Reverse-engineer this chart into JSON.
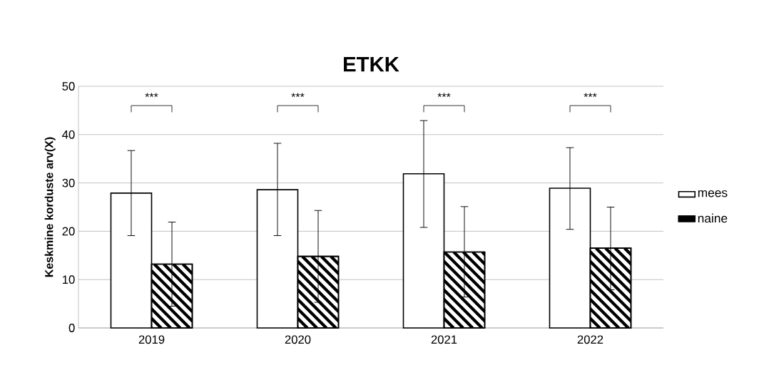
{
  "chart_data": {
    "type": "bar",
    "title": "ETKK",
    "ylabel": "Keskmine korduste arv(X)",
    "categories": [
      "2019",
      "2020",
      "2021",
      "2022"
    ],
    "series": [
      {
        "name": "mees",
        "color": "#ffffff",
        "values": [
          27.9,
          28.6,
          31.9,
          28.9
        ],
        "errors": [
          [
            19.1,
            36.7
          ],
          [
            19.1,
            38.2
          ],
          [
            20.8,
            42.9
          ],
          [
            20.4,
            37.3
          ]
        ]
      },
      {
        "name": "naine",
        "color": "#000000",
        "values": [
          13.2,
          14.8,
          15.7,
          16.5
        ],
        "errors": [
          [
            4.5,
            21.9
          ],
          [
            5.3,
            24.3
          ],
          [
            6.4,
            25.1
          ],
          [
            7.9,
            25.0
          ]
        ]
      }
    ],
    "ylim": [
      0,
      50
    ],
    "yticks": [
      0,
      10,
      20,
      30,
      40,
      50
    ],
    "grid": "y",
    "legend": "right",
    "annotations": [
      "***",
      "***",
      "***",
      "***"
    ]
  }
}
